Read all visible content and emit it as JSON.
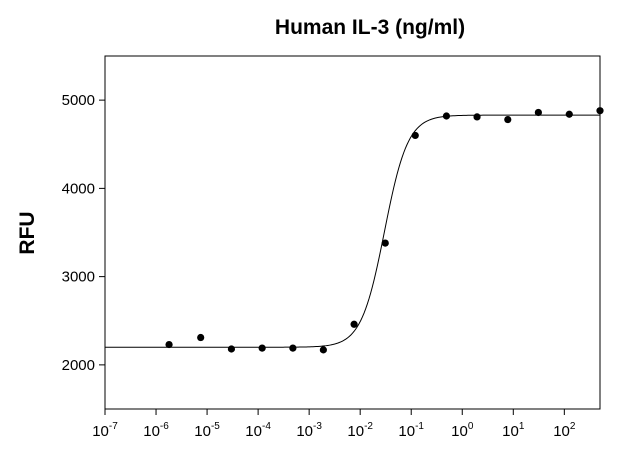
{
  "chart_data": {
    "type": "scatter",
    "title": "Human IL-3 (ng/ml)",
    "xlabel": "",
    "ylabel": "RFU",
    "x_scale": "log",
    "xlim": [
      1e-07,
      500
    ],
    "ylim": [
      1500,
      5500
    ],
    "x_tick_labels": [
      {
        "base": "10",
        "exp": "-7"
      },
      {
        "base": "10",
        "exp": "-6"
      },
      {
        "base": "10",
        "exp": "-5"
      },
      {
        "base": "10",
        "exp": "-4"
      },
      {
        "base": "10",
        "exp": "-3"
      },
      {
        "base": "10",
        "exp": "-2"
      },
      {
        "base": "10",
        "exp": "-1"
      },
      {
        "base": "10",
        "exp": "0"
      },
      {
        "base": "10",
        "exp": "1"
      },
      {
        "base": "10",
        "exp": "2"
      }
    ],
    "y_ticks": [
      2000,
      3000,
      4000,
      5000
    ],
    "y_tick_labels": [
      "2000",
      "3000",
      "4000",
      "5000"
    ],
    "grid": false,
    "series": [
      {
        "points": [
          {
            "x": 1.8e-06,
            "y": 2230
          },
          {
            "x": 7.5e-06,
            "y": 2310
          },
          {
            "x": 3e-05,
            "y": 2180
          },
          {
            "x": 0.00012,
            "y": 2190
          },
          {
            "x": 0.00048,
            "y": 2190
          },
          {
            "x": 0.0019,
            "y": 2170
          },
          {
            "x": 0.0076,
            "y": 2460
          },
          {
            "x": 0.031,
            "y": 3380
          },
          {
            "x": 0.12,
            "y": 4600
          },
          {
            "x": 0.49,
            "y": 4820
          },
          {
            "x": 1.95,
            "y": 4810
          },
          {
            "x": 7.8,
            "y": 4780
          },
          {
            "x": 31,
            "y": 4860
          },
          {
            "x": 125,
            "y": 4840
          },
          {
            "x": 500,
            "y": 4880
          }
        ]
      }
    ],
    "fit_curve": {
      "type": "4PL",
      "bottom": 2200,
      "top": 4830,
      "ec50": 0.03,
      "hill": 1.9
    }
  }
}
